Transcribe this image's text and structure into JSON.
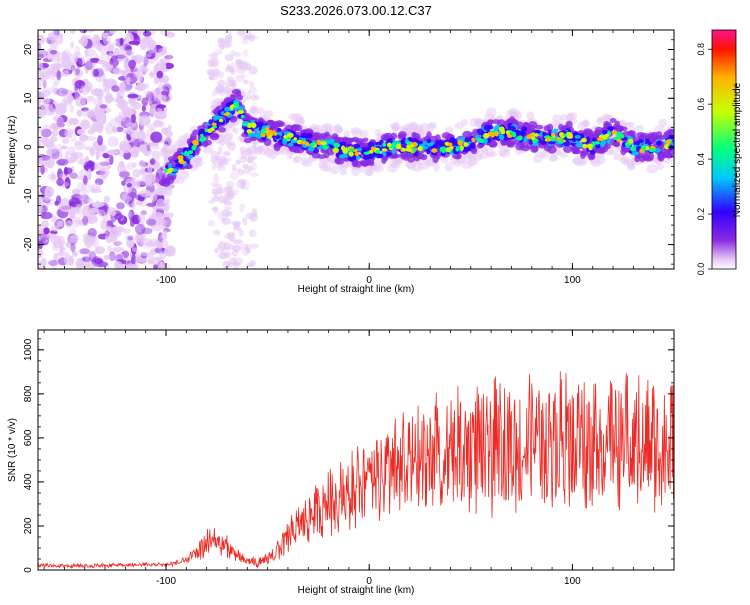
{
  "page_title": "S233.2026.073.00.12.C37",
  "chart_data": [
    {
      "type": "heatmap",
      "title": "S233.2026.073.00.12.C37",
      "xlabel": "Height of straight line (km)",
      "ylabel": "Frequency (Hz)",
      "xlim": [
        -163,
        150
      ],
      "ylim": [
        -25,
        24
      ],
      "x_ticks": [
        -100,
        0,
        100
      ],
      "x_tick_labels": [
        "-100",
        "0",
        "100"
      ],
      "y_ticks": [
        -20,
        -10,
        0,
        10,
        20
      ],
      "y_tick_labels": [
        "-20",
        "-10",
        "0",
        "10",
        "20"
      ],
      "ridge": {
        "x": [
          -100,
          -90,
          -80,
          -75,
          -70,
          -65,
          -60,
          -50,
          -40,
          -30,
          -20,
          -10,
          0,
          10,
          20,
          30,
          40,
          50,
          60,
          70,
          80,
          90,
          100,
          110,
          120,
          130,
          140,
          150
        ],
        "frequency": [
          -5,
          -2,
          3,
          5,
          7,
          9,
          4,
          3,
          2,
          1,
          0,
          -1,
          -1,
          0,
          0,
          0,
          0,
          1,
          3,
          3,
          2,
          2,
          2,
          0,
          3,
          0,
          0,
          1
        ]
      },
      "colorbar": {
        "label": "Normalized spectral amplitude",
        "range": [
          0.0,
          0.87
        ],
        "ticks": [
          0.0,
          0.2,
          0.4,
          0.6,
          0.8
        ],
        "tick_labels": [
          "0.0",
          "0.2",
          "0.4",
          "0.6",
          "0.8"
        ],
        "colors": [
          "#ffffff",
          "#e6c8f5",
          "#8a2be2",
          "#3300ff",
          "#00c8ff",
          "#00ff80",
          "#c8ff00",
          "#ffb400",
          "#ff1400",
          "#ff1493"
        ]
      }
    },
    {
      "type": "line",
      "xlabel": "Height of straight line (km)",
      "ylabel": "SNR (10 * v/v)",
      "xlim": [
        -163,
        150
      ],
      "ylim": [
        0,
        1090
      ],
      "x_ticks": [
        -100,
        0,
        100
      ],
      "x_tick_labels": [
        "-100",
        "0",
        "100"
      ],
      "y_ticks": [
        0,
        200,
        400,
        600,
        800,
        1000
      ],
      "y_tick_labels": [
        "0",
        "200",
        "400",
        "600",
        "800",
        "1000"
      ],
      "color": "#ee2a24",
      "envelope": {
        "x": [
          -163,
          -130,
          -110,
          -100,
          -90,
          -80,
          -75,
          -70,
          -65,
          -60,
          -55,
          -50,
          -45,
          -40,
          -35,
          -30,
          -25,
          -20,
          -15,
          -10,
          -5,
          0,
          5,
          10,
          15,
          20,
          25,
          30,
          35,
          40,
          45,
          50,
          55,
          60,
          65,
          70,
          75,
          80,
          85,
          90,
          95,
          100,
          105,
          110,
          115,
          120,
          125,
          130,
          135,
          140,
          145,
          150
        ],
        "y": [
          20,
          20,
          25,
          25,
          40,
          120,
          140,
          100,
          60,
          40,
          35,
          45,
          90,
          150,
          200,
          230,
          270,
          300,
          340,
          360,
          380,
          410,
          420,
          450,
          470,
          480,
          490,
          510,
          520,
          530,
          540,
          550,
          560,
          550,
          560,
          570,
          560,
          570,
          580,
          580,
          590,
          580,
          590,
          600,
          580,
          590,
          600,
          580,
          570,
          580,
          560,
          560
        ]
      },
      "spread": {
        "x": [
          -163,
          -100,
          -90,
          -80,
          -70,
          -60,
          -50,
          -40,
          -30,
          -20,
          -10,
          0,
          10,
          20,
          30,
          40,
          50,
          60,
          70,
          80,
          90,
          100,
          110,
          120,
          130,
          140,
          150
        ],
        "y": [
          8,
          8,
          15,
          50,
          45,
          15,
          25,
          60,
          90,
          120,
          140,
          160,
          180,
          200,
          220,
          230,
          240,
          250,
          250,
          250,
          250,
          250,
          250,
          250,
          250,
          250,
          250
        ]
      }
    }
  ]
}
